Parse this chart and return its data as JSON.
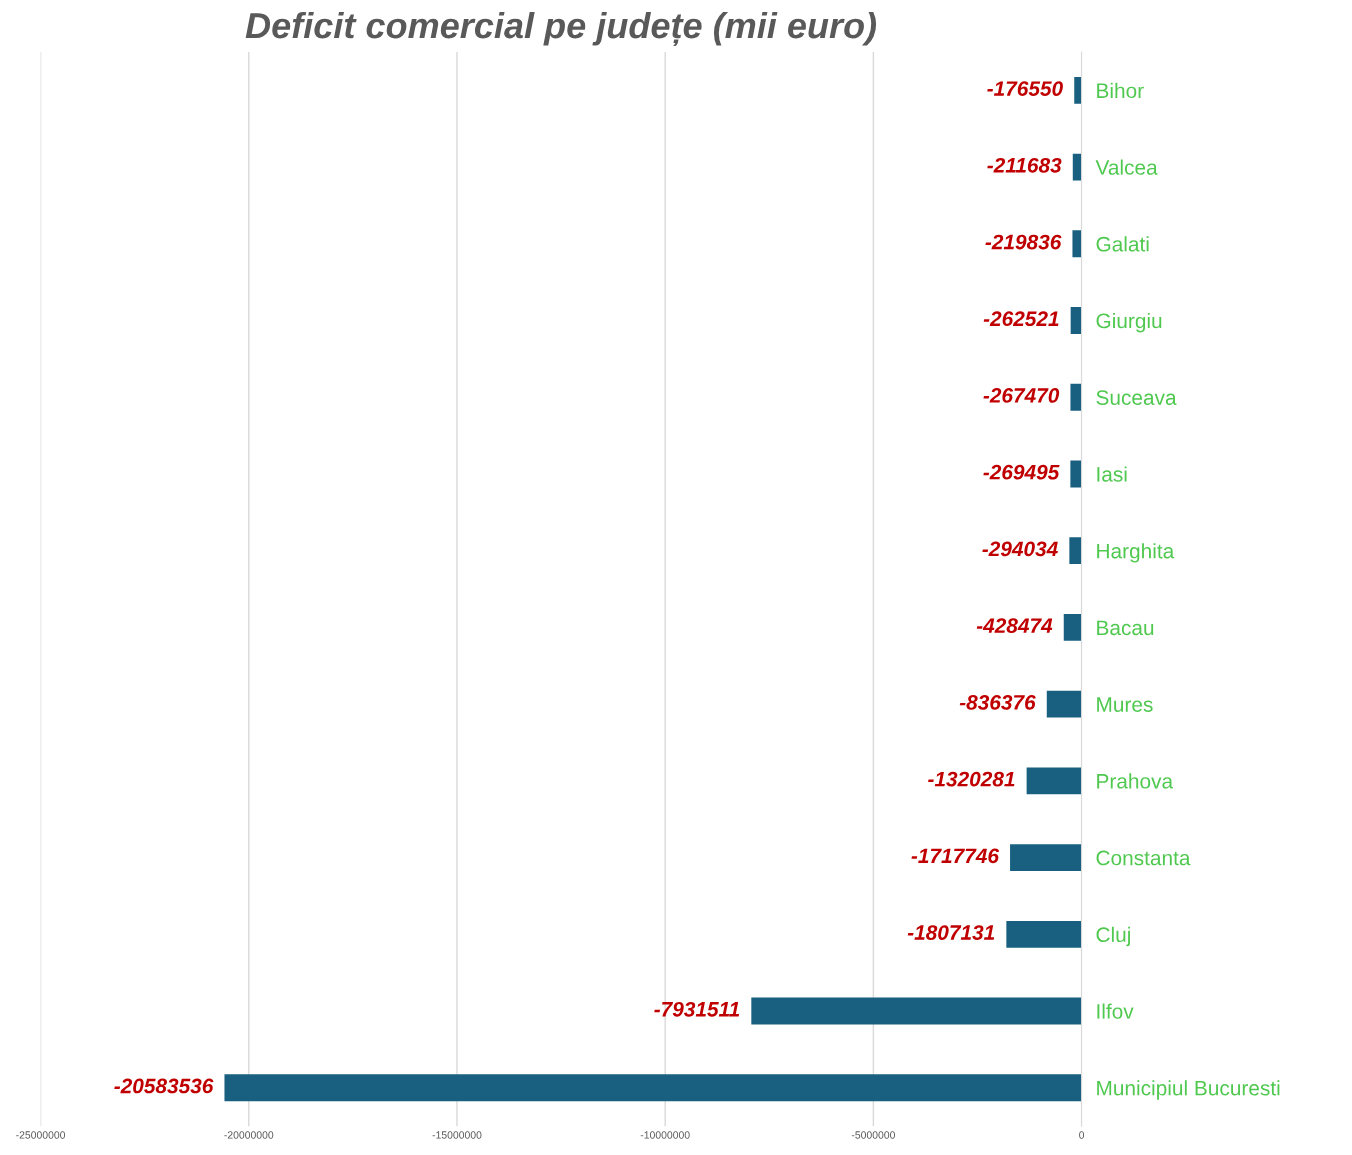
{
  "chart_data": {
    "type": "bar",
    "orientation": "horizontal",
    "title": "Deficit comercial pe județe (mii euro)",
    "categories": [
      "Bihor",
      "Valcea",
      "Galati",
      "Giurgiu",
      "Suceava",
      "Iasi",
      "Harghita",
      "Bacau",
      "Mures",
      "Prahova",
      "Constanta",
      "Cluj",
      "Ilfov",
      "Municipiul Bucuresti"
    ],
    "values": [
      -176550,
      -211683,
      -219836,
      -262521,
      -267470,
      -269495,
      -294034,
      -428474,
      -836376,
      -1320281,
      -1717746,
      -1807131,
      -7931511,
      -20583536
    ],
    "color": "#185f80",
    "data_labels": true,
    "xlim": [
      -25000000,
      0
    ],
    "xticks": [
      -25000000,
      -20000000,
      -15000000,
      -10000000,
      -5000000,
      0
    ],
    "grid": "x",
    "legend": false
  }
}
